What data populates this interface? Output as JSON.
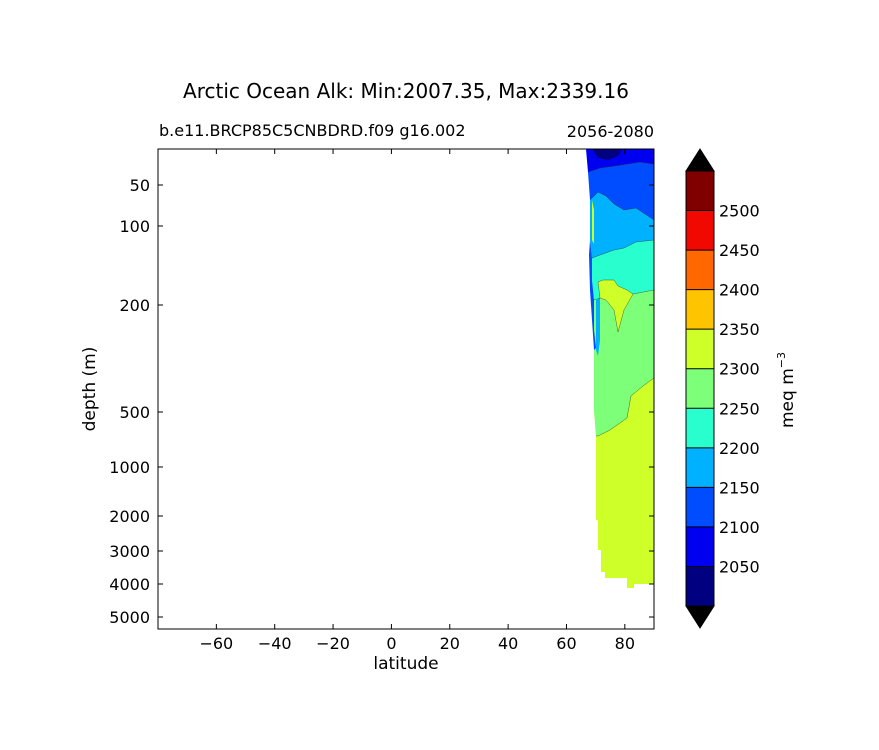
{
  "chart_data": {
    "type": "contourf",
    "title": "Arctic Ocean Alk: Min:2007.35, Max:2339.16",
    "subtitle_left": "b.e11.BRCP85C5CNBDRD.f09 g16.002",
    "subtitle_right": "2056-2080",
    "xlabel": "latitude",
    "ylabel": "depth (m)",
    "xlim": [
      -80,
      90
    ],
    "x_ticks": [
      -60,
      -40,
      -20,
      0,
      20,
      40,
      60,
      80
    ],
    "x_tick_labels": [
      "−60",
      "−40",
      "−20",
      "0",
      "20",
      "40",
      "60",
      "80"
    ],
    "y_ticks": [
      50,
      100,
      200,
      500,
      1000,
      2000,
      3000,
      4000,
      5000
    ],
    "y_tick_labels": [
      "50",
      "100",
      "200",
      "500",
      "1000",
      "2000",
      "3000",
      "4000",
      "5000"
    ],
    "y_inverted": true,
    "colorbar": {
      "label_main": "meq m",
      "label_exp": "−3",
      "levels": [
        2000,
        2050,
        2100,
        2150,
        2200,
        2250,
        2300,
        2350,
        2400,
        2450,
        2500,
        2550
      ],
      "tick_labels": [
        "2050",
        "2100",
        "2150",
        "2200",
        "2250",
        "2300",
        "2350",
        "2400",
        "2450",
        "2500"
      ],
      "colors": [
        "#000080",
        "#0000f1",
        "#004dff",
        "#00b1ff",
        "#29ffce",
        "#7dff7a",
        "#ceff29",
        "#ffc400",
        "#ff6800",
        "#f10800",
        "#800000"
      ],
      "extend_colors": {
        "min": "#000000",
        "max": "#000000"
      }
    }
  }
}
